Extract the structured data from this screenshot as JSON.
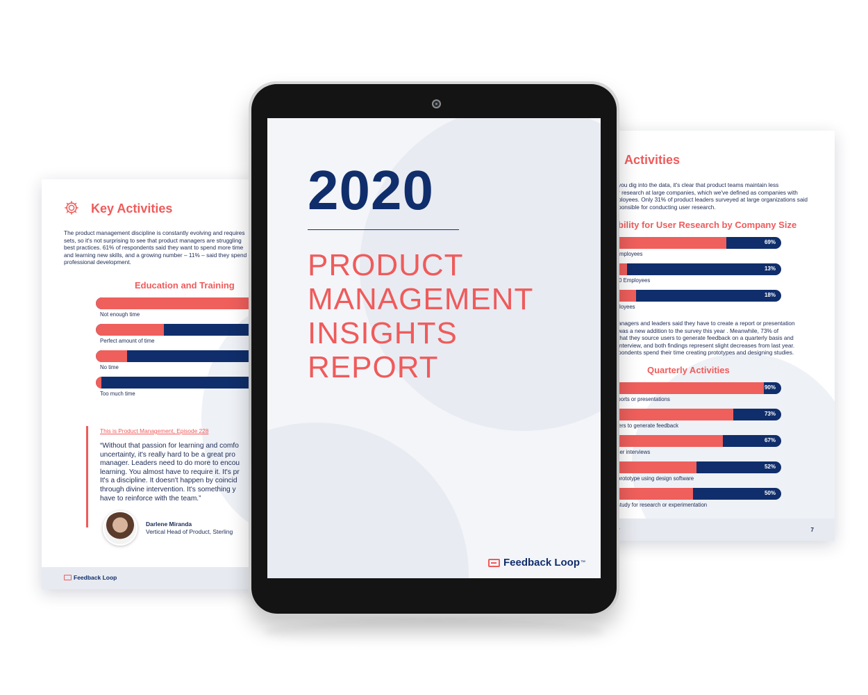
{
  "left_page": {
    "title": "Key Activities",
    "icon": "gear-icon",
    "intro_lines": [
      "The product management discipline is constantly evolving and requires",
      "sets, so it's not surprising to see that product managers are struggling",
      "best practices. 61% of respondents said they want to spend more time",
      "and learning new skills, and a growing number – 11% – said they spend e",
      "professional development."
    ],
    "chart_title": "Education and Training",
    "bars": [
      {
        "label": "Not enough time",
        "value": 61
      },
      {
        "label": "Perfect amount of time",
        "value": 24
      },
      {
        "label": "No time",
        "value": 11
      },
      {
        "label": "Too much time",
        "value": 2
      }
    ],
    "episode_link": "This is Product Management, Episode 228",
    "quote_lines": [
      "“Without that passion for learning and comfo",
      "uncertainty, it's really hard to be a great pro",
      "manager. Leaders need to do more to encou",
      "learning. You almost have to require it. It's pr",
      "It's a discipline. It doesn't happen by coincid",
      "through divine intervention. It's something y",
      "have to reinforce with the team.”"
    ],
    "person_name": "Darlene Miranda",
    "person_title": "Vertical Head of Product, Sterling",
    "footer_logo": "Feedback Loop"
  },
  "right_page": {
    "title": "Activities",
    "intro_lines": [
      "you dig into the data, it's clear that product teams maintain less",
      "r research at large companies, which we've defined as companies with",
      "ployees. Only 31% of product leaders surveyed at large organizations said",
      "ponsible for conducting user research."
    ],
    "chart1_title": "bility for User Research by Company Size",
    "chart1_bars": [
      {
        "label": "00 Employees",
        "value": 69,
        "value_label": "69%"
      },
      {
        "label": "5,000 Employees",
        "value": 13,
        "value_label": "13%"
      },
      {
        "label": " Employees",
        "value": 18,
        "value_label": "18%"
      }
    ],
    "middle_lines": [
      "anagers and leaders said they have to create a report or presentation",
      "was a new addition to the survey this year . Meanwhile, 73% of",
      "that they source users to generate feedback on a quarterly basis and",
      "interview, and both findings represent slight decreases from last year.",
      "pondents spend their time creating prototypes and designing studies."
    ],
    "chart2_title": "Quarterly Activities",
    "chart2_bars": [
      {
        "label": "e reports or presentations",
        "value": 90,
        "value_label": "90%"
      },
      {
        "label": "e users to generate feedback",
        "value": 73,
        "value_label": "73%"
      },
      {
        "label": "ct user interviews",
        "value": 67,
        "value_label": "67%"
      },
      {
        "label": "e a prototype using design software",
        "value": 52,
        "value_label": "52%"
      },
      {
        "label": "n a study for research or experimentation",
        "value": 50,
        "value_label": "50%"
      }
    ],
    "footer_left": "r",
    "page_number": "7"
  },
  "tablet": {
    "year": "2020",
    "title_lines": [
      "PRODUCT",
      "MANAGEMENT",
      "INSIGHTS",
      "REPORT"
    ],
    "brand": "Feedback Loop",
    "brand_tm": "™"
  },
  "colors": {
    "coral": "#ef5f5c",
    "navy": "#102e6b"
  }
}
